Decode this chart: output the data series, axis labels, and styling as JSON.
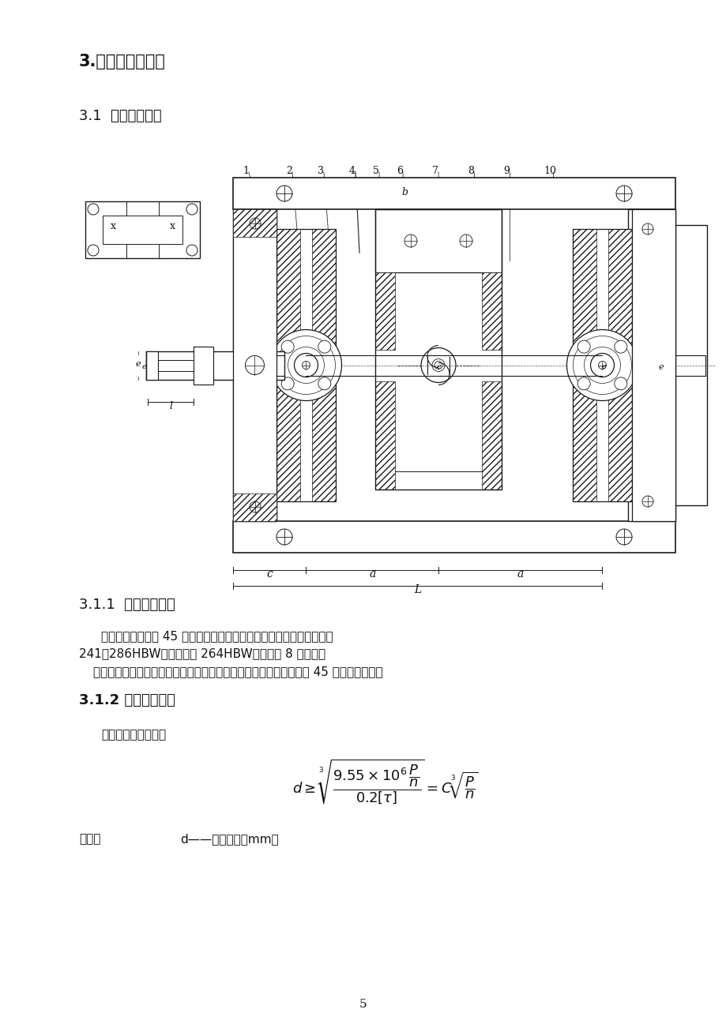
{
  "title1": "3.设计计算说明书",
  "title2": "3.1  轴的结构设计",
  "section311": "3.1.1  轴材料的选取",
  "section312": "3.1.2 初步计算轴径",
  "para1_line1": "大、小齿轮均选用 45 号钢，调制处理，采用软齿面，大小齿面硬度为",
  "para1_line2": "241～286HBW，平均硬度 264HBW；齿轮为 8 级精度。",
  "para1_line3": "因轴传递功率不大，对重量及结构尺寸无特殊要求，故选用常用材料 45 钢，调质处理。",
  "para2": "按照扭矩初算轴径：",
  "formula_intro": "式中：",
  "formula_d": "d——轴的直径，mm；",
  "page_number": "5",
  "bg_color": "#ffffff",
  "text_color": "#000000"
}
